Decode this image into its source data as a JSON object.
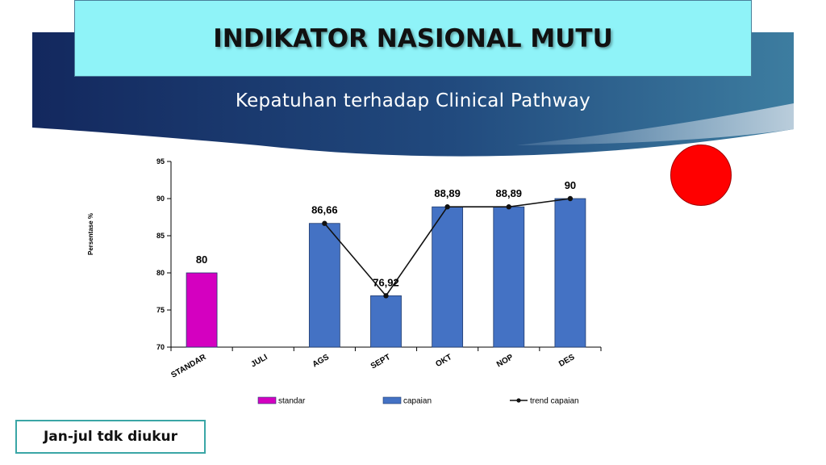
{
  "header": {
    "title": "INDIKATOR NASIONAL MUTU",
    "subtitle": "Kepatuhan terhadap Clinical Pathway"
  },
  "status_indicator": {
    "color": "#ff0000"
  },
  "note": "Jan-jul tdk diukur",
  "colors": {
    "banner_dark": "#13285e",
    "banner_light": "#3d7da0",
    "title_bg": "#8ff3f8",
    "standar": "#d400c0",
    "capaian": "#4472c4",
    "trend": "#111111"
  },
  "chart_data": {
    "type": "bar",
    "categories": [
      "STANDAR",
      "JULI",
      "AGS",
      "SEPT",
      "OKT",
      "NOP",
      "DES"
    ],
    "ylabel": "Persentase %",
    "xlabel": "",
    "ylim": [
      70,
      95
    ],
    "yticks": [
      70,
      75,
      80,
      85,
      90,
      95
    ],
    "grid": false,
    "legend_placement": "bottom",
    "series": [
      {
        "name": "standar",
        "kind": "bar",
        "color": "#d400c0",
        "values": [
          80,
          null,
          null,
          null,
          null,
          null,
          null
        ]
      },
      {
        "name": "capaian",
        "kind": "bar",
        "color": "#4472c4",
        "values": [
          null,
          null,
          86.66,
          76.92,
          88.89,
          88.89,
          90
        ]
      },
      {
        "name": "trend capaian",
        "kind": "line",
        "color": "#111111",
        "values": [
          null,
          null,
          86.66,
          76.92,
          88.89,
          88.89,
          90
        ]
      }
    ],
    "data_labels": [
      "80",
      "",
      "86,66",
      "76,92",
      "88,89",
      "88,89",
      "90"
    ]
  }
}
